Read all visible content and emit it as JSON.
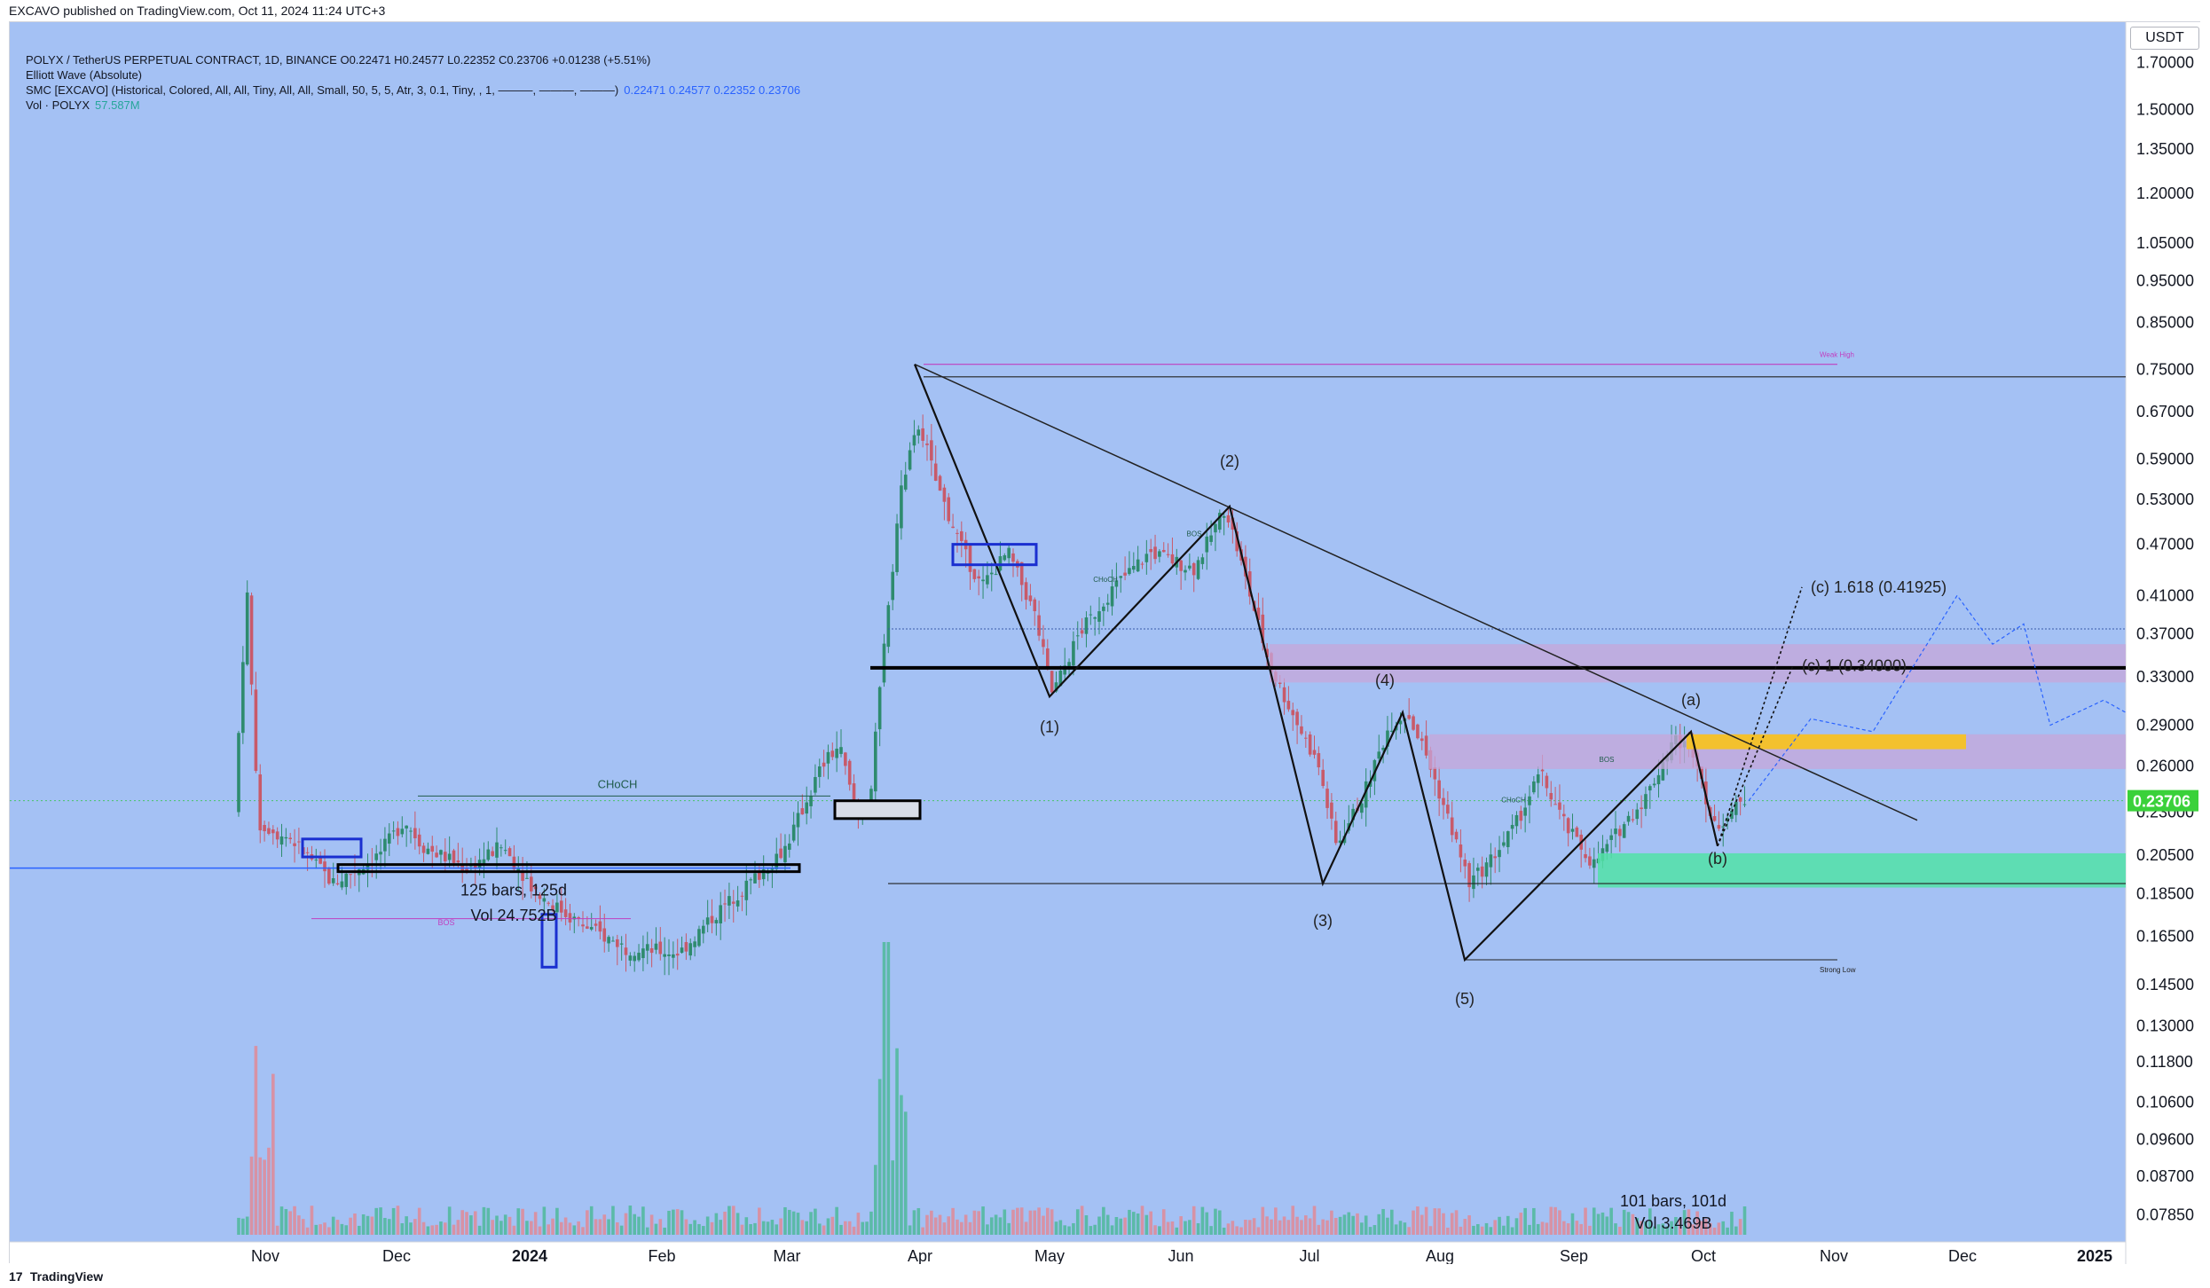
{
  "header": {
    "published": "EXCAVO published on TradingView.com, Oct 11, 2024 11:24 UTC+3"
  },
  "legend": {
    "symbol_line": "POLYX / TetherUS PERPETUAL CONTRACT, 1D, BINANCE  O0.22471  H0.24577  L0.22352  C0.23706  +0.01238 (+5.51%)",
    "elliott": "Elliott Wave (Absolute)",
    "smc": "SMC [EXCAVO] (Historical, Colored, All, All, Tiny, All, All, Small, 50, 5, 5, Atr, 3, 0.1, Tiny, , 1, ———, ———, ———)",
    "smc_values": "0.22471  0.24577  0.22352  0.23706",
    "vol": "Vol · POLYX",
    "vol_value": "57.587M"
  },
  "footer": {
    "brand": "TradingView",
    "logo": "17"
  },
  "chart_data": {
    "type": "candlestick",
    "quote_unit": "USDT",
    "y_scale": "log",
    "ylim": [
      0.073,
      1.85
    ],
    "current_price": "0.23706",
    "colors": {
      "background": "#a4c1f4",
      "up": "#2e8b6e",
      "down": "#c85a6a",
      "price_line": "#3ad13a",
      "zone_purple": "#c7a6d9",
      "zone_yellow": "#f3c12e",
      "zone_green": "#52e2a7"
    },
    "price_ticks": [
      "1.70000",
      "1.50000",
      "1.35000",
      "1.20000",
      "1.05000",
      "0.95000",
      "0.85000",
      "0.75000",
      "0.67000",
      "0.59000",
      "0.53000",
      "0.47000",
      "0.41000",
      "0.37000",
      "0.33000",
      "0.29000",
      "0.26000",
      "0.23000",
      "0.20500",
      "0.18500",
      "0.16500",
      "0.14500",
      "0.13000",
      "0.11800",
      "0.10600",
      "0.09600",
      "0.08700",
      "0.07850"
    ],
    "time_ticks": [
      "Nov",
      "Dec",
      "2024",
      "Feb",
      "Mar",
      "Apr",
      "May",
      "Jun",
      "Jul",
      "Aug",
      "Sep",
      "Oct",
      "Nov",
      "Dec",
      "2025"
    ],
    "wave_labels": [
      "(1)",
      "(2)",
      "(3)",
      "(4)",
      "(5)",
      "(a)",
      "(b)"
    ],
    "wave_points": [
      {
        "label": "(1)",
        "price": 0.313
      },
      {
        "label": "(2)",
        "price": 0.52
      },
      {
        "label": "(3)",
        "price": 0.19
      },
      {
        "label": "(4)",
        "price": 0.3
      },
      {
        "label": "(5)",
        "price": 0.155
      },
      {
        "label": "(a)",
        "price": 0.285
      },
      {
        "label": "(b)",
        "price": 0.21
      }
    ],
    "targets": [
      {
        "text": "(c) 1.618 (0.41925)",
        "price": 0.41925
      },
      {
        "text": "(c) 1 (0.34000)",
        "price": 0.34
      }
    ],
    "annotations": {
      "range_left_1": "125 bars, 125d",
      "range_left_2": "Vol 24.752B",
      "range_right_1": "101 bars, 101d",
      "range_right_2": "Vol 3.469B",
      "weak_high": "Weak High",
      "strong_low": "Strong Low",
      "choch": "CHoCH",
      "bos": "BOS"
    },
    "levels": {
      "resistance_black": 0.338,
      "top_line": 0.735,
      "support_line": 0.19,
      "strong_low": 0.155,
      "weak_high": 0.76
    }
  }
}
